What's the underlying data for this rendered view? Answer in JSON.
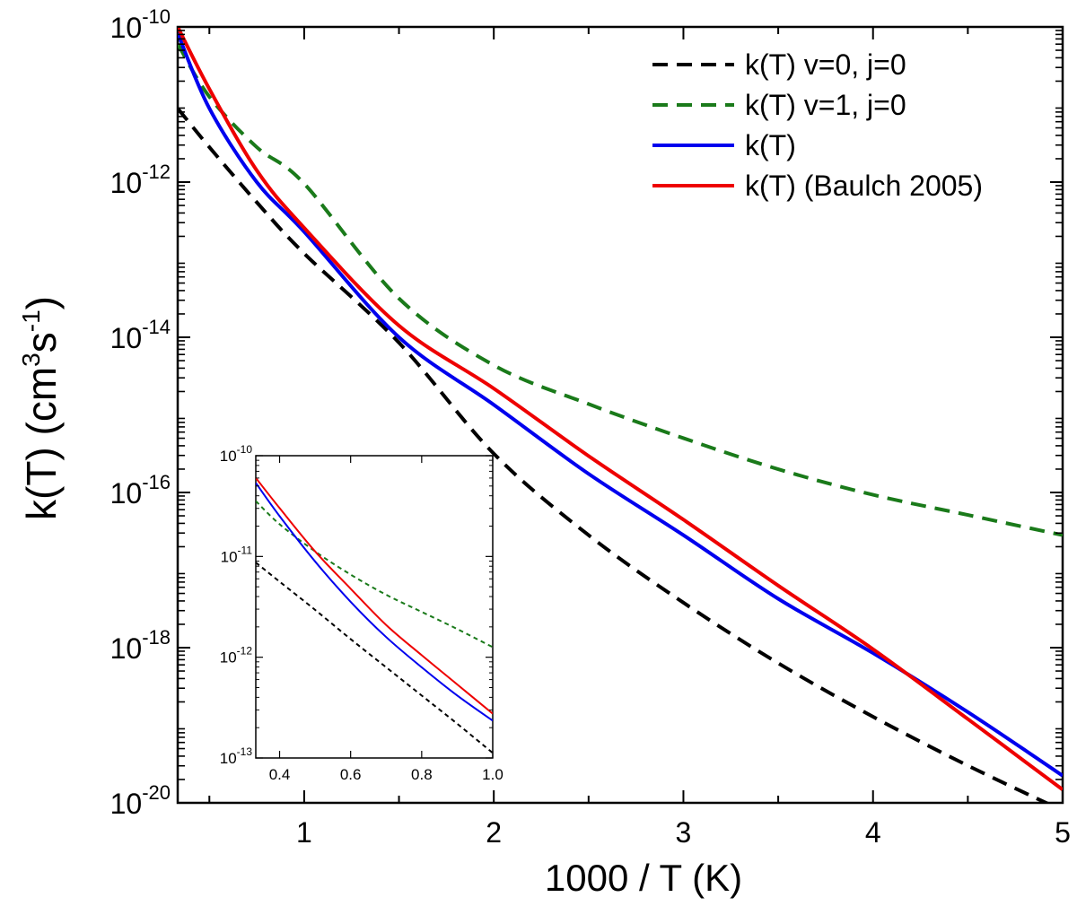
{
  "chart_data": [
    {
      "type": "line",
      "panel": "main",
      "xlabel": "1000 / T (K)",
      "ylabel_main": "k(T) (cm",
      "ylabel_sup1": "3",
      "ylabel_mid": "s",
      "ylabel_sup2": "-1",
      "ylabel_end": ")",
      "y_scale": "log",
      "xlim": [
        0.333,
        5.0
      ],
      "ylim_exp": [
        -20,
        -10
      ],
      "x_ticks": [
        {
          "value": 1,
          "label": "1"
        },
        {
          "value": 2,
          "label": "2"
        },
        {
          "value": 3,
          "label": "3"
        },
        {
          "value": 4,
          "label": "4"
        },
        {
          "value": 5,
          "label": "5"
        }
      ],
      "x_minor_ticks": [
        0.5,
        1.5,
        2.5,
        3.5,
        4.5
      ],
      "y_ticks": [
        {
          "exp": -10,
          "base": "10",
          "sup": "-10"
        },
        {
          "exp": -12,
          "base": "10",
          "sup": "-12"
        },
        {
          "exp": -14,
          "base": "10",
          "sup": "-14"
        },
        {
          "exp": -16,
          "base": "10",
          "sup": "-16"
        },
        {
          "exp": -18,
          "base": "10",
          "sup": "-18"
        },
        {
          "exp": -20,
          "base": "10",
          "sup": "-20"
        }
      ],
      "y_minor_ticks_exp": [
        -11,
        -13,
        -15,
        -17,
        -19
      ],
      "legend_position": "top-right",
      "series": [
        {
          "name": "k(T) v=0, j=0",
          "color": "#000000",
          "dashed": true,
          "x": [
            0.333,
            0.5,
            0.75,
            1.0,
            1.5,
            2.0,
            2.5,
            3.0,
            3.5,
            4.0,
            4.5,
            5.0
          ],
          "log10_y": [
            -11.05,
            -11.55,
            -12.26,
            -12.92,
            -14.07,
            -15.5,
            -16.55,
            -17.42,
            -18.2,
            -18.89,
            -19.52,
            -20.1
          ]
        },
        {
          "name": "k(T) v=1, j=0",
          "color": "#1a7a1a",
          "dashed": true,
          "x": [
            0.333,
            0.5,
            0.75,
            1.0,
            1.5,
            2.0,
            2.5,
            3.0,
            3.5,
            4.0,
            4.5,
            5.0
          ],
          "log10_y": [
            -10.22,
            -10.9,
            -11.55,
            -12.02,
            -13.5,
            -14.36,
            -14.86,
            -15.3,
            -15.7,
            -16.03,
            -16.29,
            -16.55
          ]
        },
        {
          "name": "k(T)",
          "color": "#0000ee",
          "dashed": false,
          "x": [
            0.333,
            0.5,
            0.75,
            1.0,
            1.5,
            2.0,
            2.5,
            3.0,
            3.5,
            4.0,
            4.5,
            5.0
          ],
          "log10_y": [
            -10.08,
            -11.05,
            -12.0,
            -12.64,
            -14.0,
            -14.87,
            -15.76,
            -16.55,
            -17.37,
            -18.07,
            -18.83,
            -19.65
          ]
        },
        {
          "name": "k(T) (Baulch 2005)",
          "color": "#ee0000",
          "dashed": false,
          "x": [
            0.333,
            0.5,
            0.75,
            1.0,
            1.5,
            2.0,
            2.5,
            3.0,
            3.5,
            4.0,
            4.5,
            5.0
          ],
          "log10_y": [
            -10.0,
            -10.8,
            -11.85,
            -12.59,
            -13.85,
            -14.66,
            -15.53,
            -16.35,
            -17.2,
            -18.02,
            -18.92,
            -19.83
          ]
        }
      ]
    },
    {
      "type": "line",
      "panel": "inset",
      "y_scale": "log",
      "xlim": [
        0.333,
        1.0
      ],
      "ylim_exp": [
        -13,
        -10
      ],
      "x_ticks": [
        {
          "value": 0.4,
          "label": "0.4"
        },
        {
          "value": 0.6,
          "label": "0.6"
        },
        {
          "value": 0.8,
          "label": "0.8"
        },
        {
          "value": 1.0,
          "label": "1.0"
        }
      ],
      "y_ticks": [
        {
          "exp": -10,
          "base": "10",
          "sup": "-10"
        },
        {
          "exp": -11,
          "base": "10",
          "sup": "-11"
        },
        {
          "exp": -12,
          "base": "10",
          "sup": "-12"
        },
        {
          "exp": -13,
          "base": "10",
          "sup": "-13"
        }
      ],
      "series": [
        {
          "name": "k(T) v=0, j=0",
          "color": "#000000",
          "dashed": true,
          "x": [
            0.333,
            0.4,
            0.5,
            0.6,
            0.7,
            0.8,
            0.9,
            1.0
          ],
          "log10_y": [
            -11.06,
            -11.25,
            -11.53,
            -11.82,
            -12.1,
            -12.38,
            -12.66,
            -12.95
          ]
        },
        {
          "name": "k(T) v=1, j=0",
          "color": "#1a7a1a",
          "dashed": true,
          "x": [
            0.333,
            0.4,
            0.5,
            0.6,
            0.7,
            0.8,
            0.9,
            1.0
          ],
          "log10_y": [
            -10.45,
            -10.68,
            -10.95,
            -11.18,
            -11.38,
            -11.55,
            -11.72,
            -11.9
          ]
        },
        {
          "name": "k(T)",
          "color": "#0000ee",
          "dashed": false,
          "x": [
            0.333,
            0.4,
            0.5,
            0.6,
            0.7,
            0.8,
            0.9,
            1.0
          ],
          "log10_y": [
            -10.27,
            -10.6,
            -11.05,
            -11.45,
            -11.8,
            -12.1,
            -12.38,
            -12.63
          ]
        },
        {
          "name": "k(T) (Baulch 2005)",
          "color": "#ee0000",
          "dashed": false,
          "x": [
            0.333,
            0.4,
            0.5,
            0.6,
            0.7,
            0.8,
            0.9,
            1.0
          ],
          "log10_y": [
            -10.22,
            -10.52,
            -10.95,
            -11.32,
            -11.68,
            -11.98,
            -12.27,
            -12.56
          ]
        }
      ]
    }
  ]
}
